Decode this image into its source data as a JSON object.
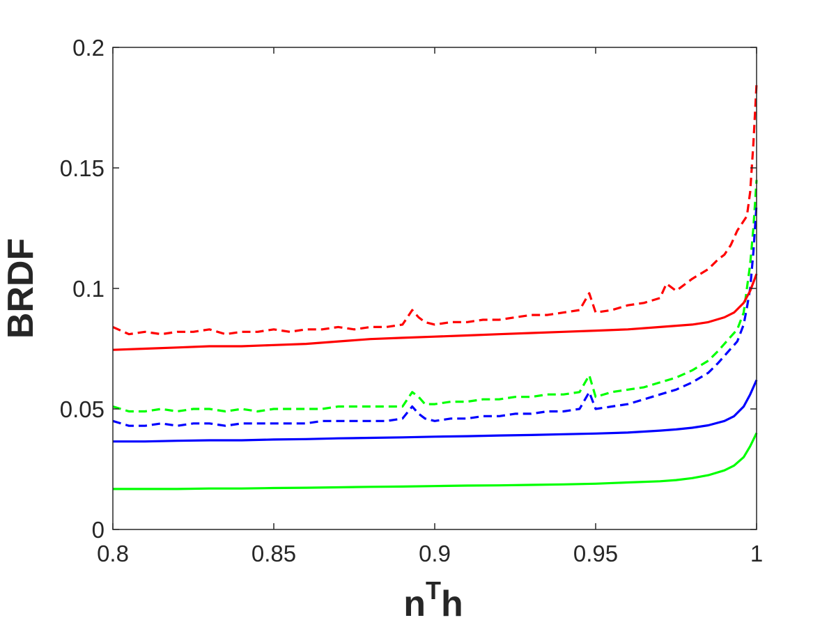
{
  "chart_data": {
    "type": "line",
    "title": "",
    "xlabel": "n",
    "xlabel_sup": "T",
    "xlabel_suffix": "h",
    "ylabel": "BRDF",
    "xlim": [
      0.8,
      1.0
    ],
    "ylim": [
      0,
      0.2
    ],
    "xticks": [
      0.8,
      0.85,
      0.9,
      0.95,
      1.0
    ],
    "xtick_labels": [
      "0.8",
      "0.85",
      "0.9",
      "0.95",
      "1"
    ],
    "yticks": [
      0,
      0.05,
      0.1,
      0.15,
      0.2
    ],
    "ytick_labels": [
      "0",
      "0.05",
      "0.1",
      "0.15",
      "0.2"
    ],
    "grid": false,
    "legend": "none",
    "series": [
      {
        "color": "#ff0000",
        "style": "dashed",
        "x": [
          0.8,
          0.805,
          0.81,
          0.815,
          0.82,
          0.825,
          0.83,
          0.835,
          0.84,
          0.845,
          0.85,
          0.855,
          0.86,
          0.865,
          0.87,
          0.875,
          0.88,
          0.885,
          0.89,
          0.893,
          0.895,
          0.897,
          0.9,
          0.905,
          0.91,
          0.915,
          0.92,
          0.925,
          0.93,
          0.935,
          0.94,
          0.945,
          0.948,
          0.95,
          0.955,
          0.96,
          0.965,
          0.97,
          0.972,
          0.975,
          0.98,
          0.985,
          0.988,
          0.99,
          0.992,
          0.994,
          0.996,
          0.997,
          0.998,
          0.999,
          1.0
        ],
        "y": [
          0.084,
          0.081,
          0.082,
          0.081,
          0.082,
          0.082,
          0.083,
          0.081,
          0.082,
          0.082,
          0.083,
          0.082,
          0.083,
          0.083,
          0.084,
          0.083,
          0.084,
          0.084,
          0.085,
          0.091,
          0.088,
          0.086,
          0.085,
          0.086,
          0.086,
          0.087,
          0.087,
          0.088,
          0.089,
          0.089,
          0.09,
          0.091,
          0.098,
          0.09,
          0.091,
          0.093,
          0.094,
          0.096,
          0.102,
          0.099,
          0.104,
          0.108,
          0.112,
          0.114,
          0.118,
          0.124,
          0.128,
          0.13,
          0.14,
          0.16,
          0.185
        ]
      },
      {
        "color": "#00ff00",
        "style": "dashed",
        "x": [
          0.8,
          0.805,
          0.81,
          0.815,
          0.82,
          0.825,
          0.83,
          0.835,
          0.84,
          0.845,
          0.85,
          0.855,
          0.86,
          0.865,
          0.87,
          0.875,
          0.88,
          0.885,
          0.89,
          0.893,
          0.895,
          0.897,
          0.9,
          0.905,
          0.91,
          0.915,
          0.92,
          0.925,
          0.93,
          0.935,
          0.94,
          0.945,
          0.948,
          0.95,
          0.955,
          0.96,
          0.965,
          0.97,
          0.975,
          0.98,
          0.985,
          0.988,
          0.99,
          0.992,
          0.994,
          0.996,
          0.997,
          0.998,
          0.999,
          1.0
        ],
        "y": [
          0.051,
          0.049,
          0.049,
          0.05,
          0.049,
          0.05,
          0.05,
          0.049,
          0.05,
          0.049,
          0.05,
          0.05,
          0.05,
          0.05,
          0.051,
          0.051,
          0.051,
          0.051,
          0.051,
          0.057,
          0.055,
          0.052,
          0.052,
          0.053,
          0.053,
          0.054,
          0.054,
          0.055,
          0.055,
          0.056,
          0.056,
          0.057,
          0.064,
          0.055,
          0.057,
          0.058,
          0.059,
          0.061,
          0.063,
          0.066,
          0.07,
          0.074,
          0.077,
          0.08,
          0.083,
          0.09,
          0.1,
          0.11,
          0.125,
          0.145
        ]
      },
      {
        "color": "#0000ff",
        "style": "dashed",
        "x": [
          0.8,
          0.805,
          0.81,
          0.815,
          0.82,
          0.825,
          0.83,
          0.835,
          0.84,
          0.845,
          0.85,
          0.855,
          0.86,
          0.865,
          0.87,
          0.875,
          0.88,
          0.885,
          0.89,
          0.893,
          0.895,
          0.897,
          0.9,
          0.905,
          0.91,
          0.915,
          0.92,
          0.925,
          0.93,
          0.935,
          0.94,
          0.945,
          0.948,
          0.95,
          0.955,
          0.96,
          0.965,
          0.97,
          0.975,
          0.98,
          0.985,
          0.988,
          0.99,
          0.992,
          0.994,
          0.996,
          0.997,
          0.998,
          0.999,
          1.0
        ],
        "y": [
          0.045,
          0.043,
          0.043,
          0.044,
          0.043,
          0.044,
          0.044,
          0.043,
          0.044,
          0.044,
          0.044,
          0.044,
          0.044,
          0.045,
          0.045,
          0.045,
          0.045,
          0.045,
          0.046,
          0.051,
          0.048,
          0.046,
          0.045,
          0.046,
          0.046,
          0.047,
          0.047,
          0.048,
          0.048,
          0.049,
          0.049,
          0.05,
          0.057,
          0.05,
          0.051,
          0.052,
          0.054,
          0.056,
          0.058,
          0.061,
          0.065,
          0.069,
          0.072,
          0.075,
          0.078,
          0.085,
          0.092,
          0.1,
          0.115,
          0.135
        ]
      },
      {
        "color": "#ff0000",
        "style": "solid",
        "x": [
          0.8,
          0.81,
          0.82,
          0.83,
          0.84,
          0.85,
          0.86,
          0.87,
          0.88,
          0.89,
          0.9,
          0.91,
          0.92,
          0.93,
          0.94,
          0.95,
          0.96,
          0.97,
          0.975,
          0.98,
          0.985,
          0.99,
          0.993,
          0.996,
          0.998,
          1.0
        ],
        "y": [
          0.0745,
          0.075,
          0.0755,
          0.076,
          0.076,
          0.0765,
          0.077,
          0.078,
          0.079,
          0.0795,
          0.08,
          0.0805,
          0.081,
          0.0815,
          0.082,
          0.0825,
          0.083,
          0.084,
          0.0845,
          0.085,
          0.086,
          0.088,
          0.09,
          0.094,
          0.099,
          0.106
        ]
      },
      {
        "color": "#0000ff",
        "style": "solid",
        "x": [
          0.8,
          0.81,
          0.82,
          0.83,
          0.84,
          0.85,
          0.86,
          0.87,
          0.88,
          0.89,
          0.9,
          0.91,
          0.92,
          0.93,
          0.94,
          0.95,
          0.96,
          0.97,
          0.975,
          0.98,
          0.985,
          0.99,
          0.993,
          0.996,
          0.998,
          1.0
        ],
        "y": [
          0.0365,
          0.0365,
          0.0368,
          0.037,
          0.037,
          0.0373,
          0.0375,
          0.0378,
          0.038,
          0.0382,
          0.0385,
          0.0387,
          0.039,
          0.0392,
          0.0395,
          0.0398,
          0.0402,
          0.041,
          0.0415,
          0.0422,
          0.0432,
          0.045,
          0.047,
          0.051,
          0.056,
          0.062
        ]
      },
      {
        "color": "#00ff00",
        "style": "solid",
        "x": [
          0.8,
          0.81,
          0.82,
          0.83,
          0.84,
          0.85,
          0.86,
          0.87,
          0.88,
          0.89,
          0.9,
          0.91,
          0.92,
          0.93,
          0.94,
          0.95,
          0.96,
          0.97,
          0.975,
          0.98,
          0.985,
          0.99,
          0.993,
          0.996,
          0.998,
          1.0
        ],
        "y": [
          0.0168,
          0.0168,
          0.0168,
          0.017,
          0.017,
          0.0172,
          0.0173,
          0.0175,
          0.0177,
          0.0178,
          0.018,
          0.0182,
          0.0183,
          0.0185,
          0.0187,
          0.019,
          0.0195,
          0.02,
          0.0205,
          0.0213,
          0.0225,
          0.0245,
          0.0265,
          0.03,
          0.0345,
          0.04
        ]
      }
    ]
  }
}
